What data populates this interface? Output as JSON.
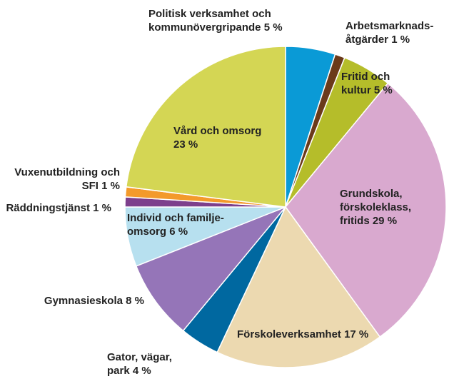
{
  "chart_data": {
    "type": "pie",
    "categories": [
      "Politisk verksamhet och kommunövergripande",
      "Arbetsmarknads-åtgärder",
      "Fritid och kultur",
      "Grundskola, förskoleklass, fritids",
      "Förskoleverksamhet",
      "Gator, vägar, park",
      "Gymnasieskola",
      "Individ och familje-omsorg",
      "Räddningstjänst",
      "Vuxenutbildning och SFI",
      "Vård och omsorg"
    ],
    "values": [
      5,
      1,
      5,
      29,
      17,
      4,
      8,
      6,
      1,
      1,
      23
    ],
    "value_labels": [
      "5 %",
      "1 %",
      "5 %",
      "29 %",
      "17 %",
      "4 %",
      "8 %",
      "6 %",
      "1 %",
      "1 %",
      "23 %"
    ],
    "colors": [
      "#0a9ad6",
      "#6b3a1a",
      "#b5bd2a",
      "#d9a9cf",
      "#ecd9b0",
      "#0068a0",
      "#9575b8",
      "#b7e0ef",
      "#7d3f8c",
      "#f39a2b",
      "#d4d654"
    ]
  }
}
